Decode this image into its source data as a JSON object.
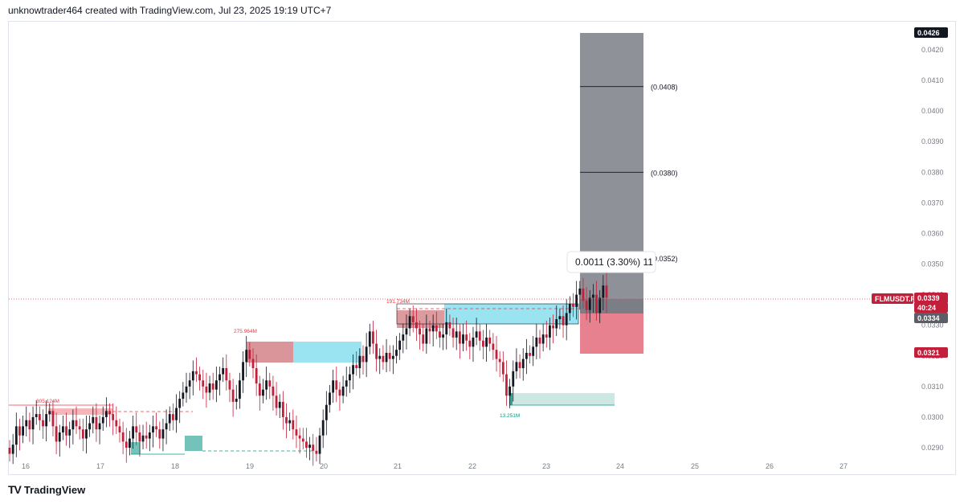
{
  "header": {
    "title": "unknowtrader464 created with TradingView.com, Jul 23, 2025 19:19 UTC+7"
  },
  "footer": {
    "brand": "TradingView",
    "logo_glyph": "TV"
  },
  "chart_data": {
    "type": "candlestick",
    "symbol": "FLMUSDT.P",
    "x_ticks": [
      "16",
      "17",
      "18",
      "19",
      "20",
      "21",
      "22",
      "23",
      "24",
      "25",
      "26",
      "27"
    ],
    "y_ticks": [
      "0.0290",
      "0.0300",
      "0.0310",
      "0.0320",
      "0.0330",
      "0.0340",
      "0.0350",
      "0.0360",
      "0.0370",
      "0.0380",
      "0.0390",
      "0.0400",
      "0.0410",
      "0.0420"
    ],
    "ylim": [
      0.0287,
      0.043
    ],
    "price_labels": {
      "top": "0.0426",
      "symbol_price": "0.0339",
      "countdown": "40:24",
      "grey": "0.0334",
      "stop": "0.0321"
    },
    "target_levels": [
      {
        "label": "(0.0408)",
        "value": 0.0408
      },
      {
        "label": "(0.0380)",
        "value": 0.038
      },
      {
        "label": "(0.0352)",
        "value": 0.0352
      }
    ],
    "measure_tooltip": "0.0011 (3.30%) 11",
    "zone_labels": [
      {
        "label": "305.124M",
        "color": "#f23645"
      },
      {
        "label": "275.964M",
        "color": "#f23645"
      },
      {
        "label": "191.734M",
        "color": "#f23645"
      },
      {
        "label": "13.251M",
        "color": "#089981"
      }
    ],
    "colors": {
      "up": "#131722",
      "down": "#c2203a",
      "target_zone": "#7b7e87",
      "stop_zone": "#e57383",
      "cyan_zone": "#8fe0ee",
      "red_zone": "#d58a8e",
      "teal_zone": "#5cb8ae"
    },
    "closes": [
      0.0288,
      0.0291,
      0.0297,
      0.0294,
      0.0297,
      0.0299,
      0.0296,
      0.03,
      0.0301,
      0.0299,
      0.0297,
      0.0301,
      0.0302,
      0.0297,
      0.0292,
      0.0295,
      0.0297,
      0.0294,
      0.0296,
      0.0299,
      0.0297,
      0.0296,
      0.0293,
      0.0296,
      0.0298,
      0.03,
      0.0296,
      0.0298,
      0.03,
      0.0302,
      0.0301,
      0.0299,
      0.0297,
      0.0295,
      0.0292,
      0.029,
      0.0293,
      0.0297,
      0.0295,
      0.0292,
      0.0294,
      0.0293,
      0.0295,
      0.0297,
      0.0296,
      0.0293,
      0.0296,
      0.0298,
      0.0301,
      0.0299,
      0.0303,
      0.0306,
      0.0308,
      0.031,
      0.0312,
      0.0315,
      0.0314,
      0.0312,
      0.031,
      0.0308,
      0.0311,
      0.0309,
      0.0312,
      0.0314,
      0.0316,
      0.0312,
      0.0309,
      0.0305,
      0.0306,
      0.0312,
      0.0318,
      0.0322,
      0.0319,
      0.0316,
      0.0311,
      0.0307,
      0.0309,
      0.0312,
      0.031,
      0.0307,
      0.0303,
      0.0305,
      0.03,
      0.0298,
      0.0299,
      0.0296,
      0.0294,
      0.0293,
      0.0292,
      0.029,
      0.0291,
      0.0289,
      0.0288,
      0.0294,
      0.0299,
      0.0304,
      0.0308,
      0.0312,
      0.0309,
      0.0307,
      0.031,
      0.0312,
      0.0314,
      0.0317,
      0.0316,
      0.032,
      0.0318,
      0.0323,
      0.0328,
      0.0324,
      0.0319,
      0.032,
      0.0318,
      0.0321,
      0.0319,
      0.032,
      0.0322,
      0.0325,
      0.0327,
      0.0329,
      0.0333,
      0.0331,
      0.0329,
      0.0327,
      0.0324,
      0.0329,
      0.0328,
      0.033,
      0.0328,
      0.0326,
      0.0327,
      0.0331,
      0.0329,
      0.0326,
      0.0328,
      0.0324,
      0.0327,
      0.0325,
      0.0323,
      0.0326,
      0.0328,
      0.0325,
      0.0323,
      0.0326,
      0.0324,
      0.0322,
      0.0319,
      0.0318,
      0.0314,
      0.0307,
      0.031,
      0.0315,
      0.0318,
      0.0316,
      0.0319,
      0.0321,
      0.032,
      0.0323,
      0.0326,
      0.0324,
      0.0327,
      0.0326,
      0.033,
      0.0329,
      0.0332,
      0.0333,
      0.033,
      0.0334,
      0.0337,
      0.0336,
      0.034,
      0.0342,
      0.0338,
      0.0335,
      0.0339,
      0.034,
      0.0334,
      0.0339,
      0.0343,
      0.0339
    ]
  }
}
